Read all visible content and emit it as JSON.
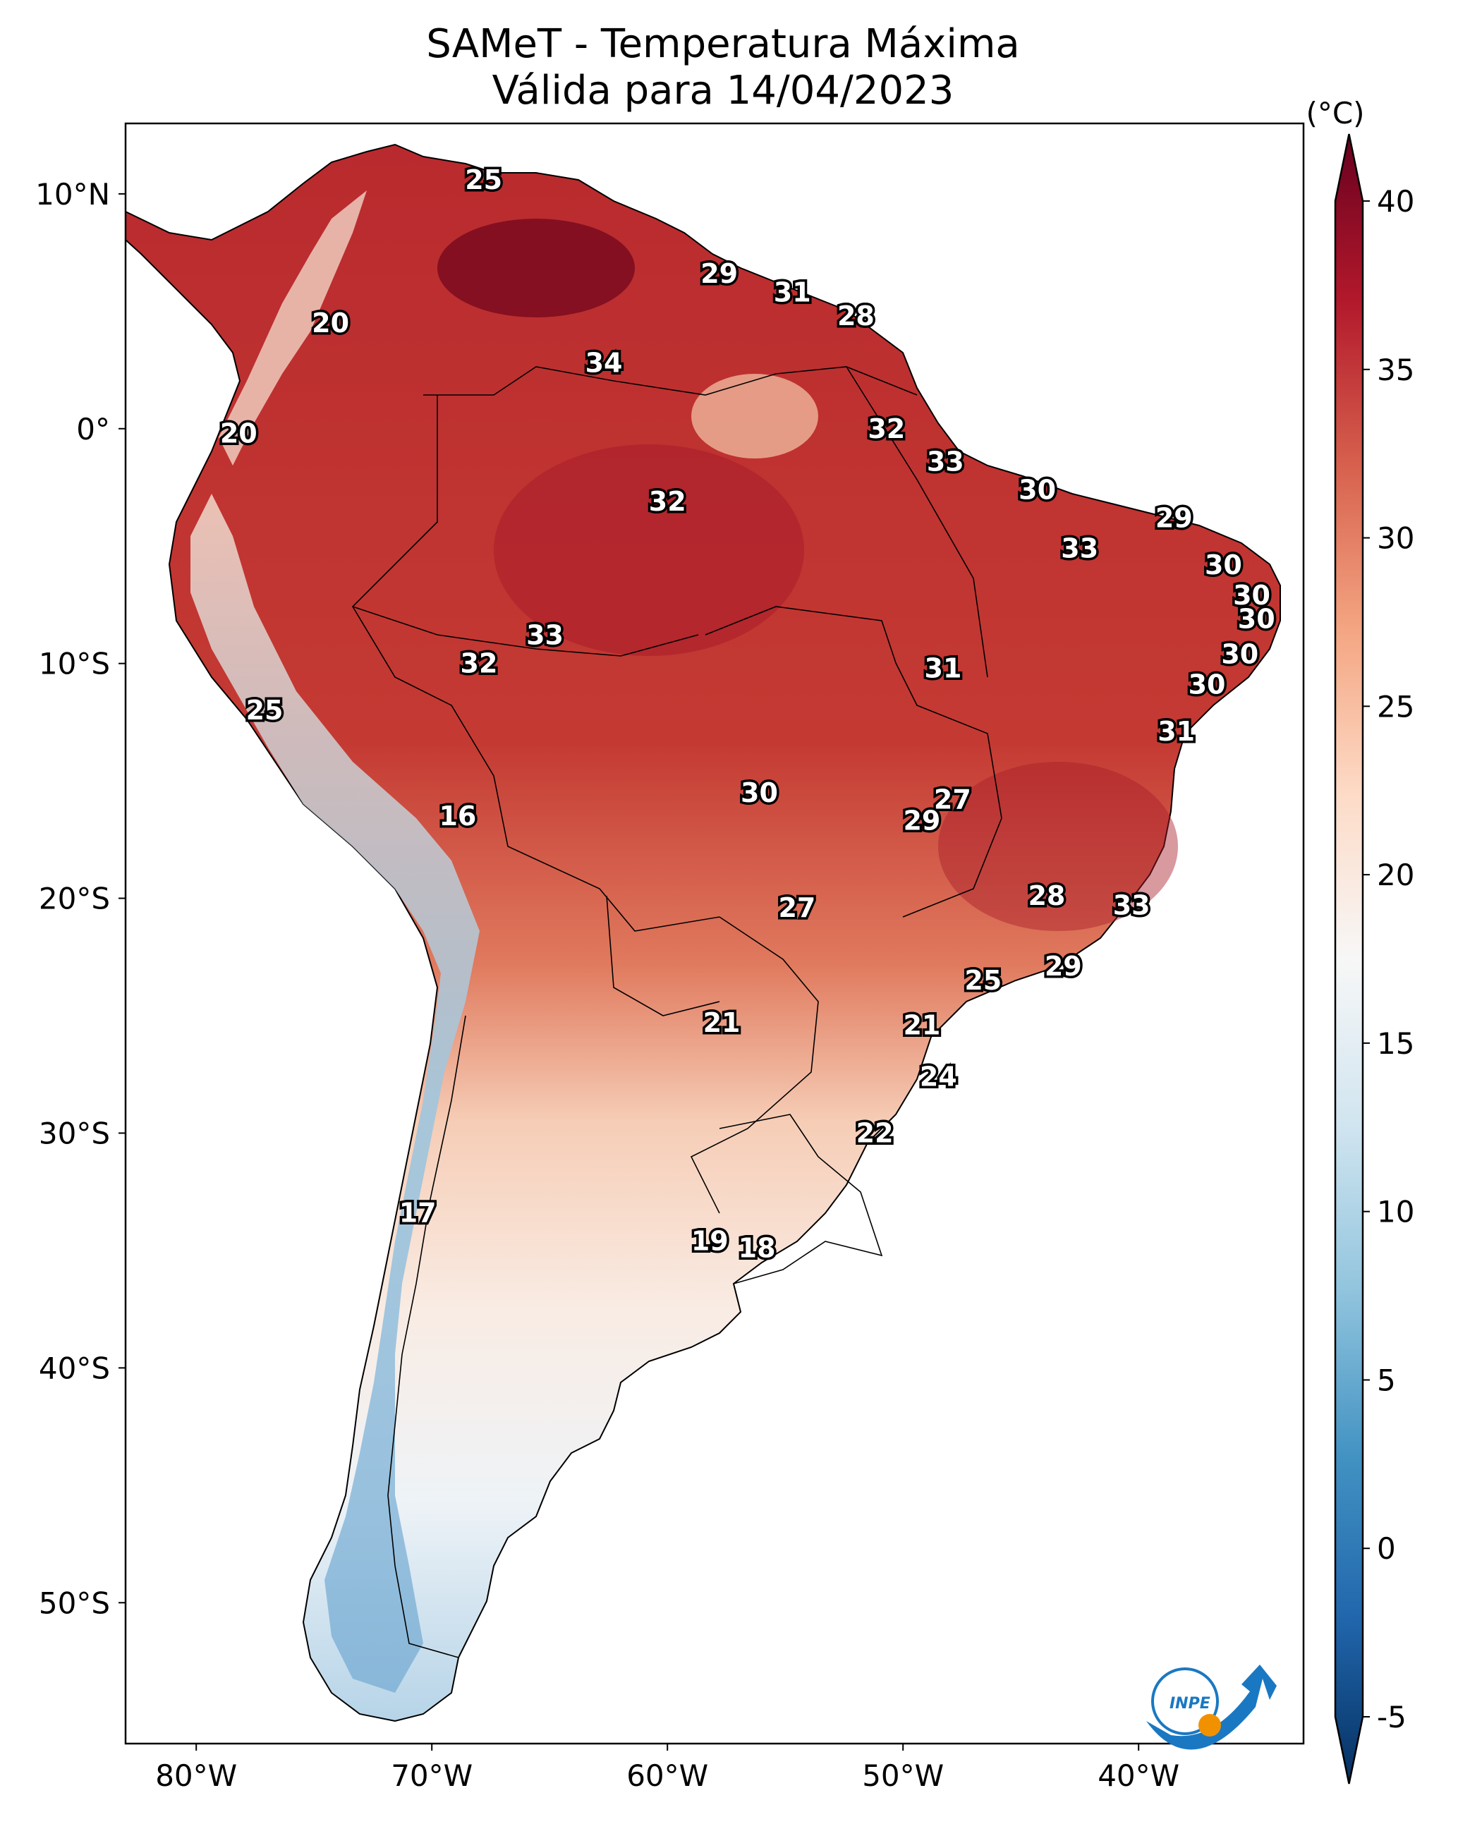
{
  "title": {
    "line1": "SAMeT - Temperatura Máxima",
    "line2": "Válida para 14/04/2023"
  },
  "map": {
    "lon_range": [
      -83,
      -33
    ],
    "lat_range": [
      -56,
      13
    ],
    "lat_ticks": [
      {
        "value": 10,
        "label": "10°N"
      },
      {
        "value": 0,
        "label": "0°"
      },
      {
        "value": -10,
        "label": "10°S"
      },
      {
        "value": -20,
        "label": "20°S"
      },
      {
        "value": -30,
        "label": "30°S"
      },
      {
        "value": -40,
        "label": "40°S"
      },
      {
        "value": -50,
        "label": "50°S"
      }
    ],
    "lon_ticks": [
      {
        "value": -80,
        "label": "80°W"
      },
      {
        "value": -70,
        "label": "70°W"
      },
      {
        "value": -60,
        "label": "60°W"
      },
      {
        "value": -50,
        "label": "50°W"
      },
      {
        "value": -40,
        "label": "40°W"
      }
    ],
    "point_values": [
      {
        "lon": -67.8,
        "lat": 10.6,
        "text": "25"
      },
      {
        "lon": -74.3,
        "lat": 4.5,
        "text": "20"
      },
      {
        "lon": -57.8,
        "lat": 6.6,
        "text": "29"
      },
      {
        "lon": -54.7,
        "lat": 5.8,
        "text": "31"
      },
      {
        "lon": -52.0,
        "lat": 4.8,
        "text": "28"
      },
      {
        "lon": -62.7,
        "lat": 2.8,
        "text": "34"
      },
      {
        "lon": -78.2,
        "lat": -0.2,
        "text": "20"
      },
      {
        "lon": -50.7,
        "lat": 0.0,
        "text": "32"
      },
      {
        "lon": -48.2,
        "lat": -1.4,
        "text": "33"
      },
      {
        "lon": -60.0,
        "lat": -3.1,
        "text": "32"
      },
      {
        "lon": -44.3,
        "lat": -2.6,
        "text": "30"
      },
      {
        "lon": -38.5,
        "lat": -3.8,
        "text": "29"
      },
      {
        "lon": -42.5,
        "lat": -5.1,
        "text": "33"
      },
      {
        "lon": -36.4,
        "lat": -5.8,
        "text": "30"
      },
      {
        "lon": -35.2,
        "lat": -7.1,
        "text": "30"
      },
      {
        "lon": -35.0,
        "lat": -8.1,
        "text": "30"
      },
      {
        "lon": -65.2,
        "lat": -8.8,
        "text": "33"
      },
      {
        "lon": -68.0,
        "lat": -10.0,
        "text": "32"
      },
      {
        "lon": -48.3,
        "lat": -10.2,
        "text": "31"
      },
      {
        "lon": -35.7,
        "lat": -9.6,
        "text": "30"
      },
      {
        "lon": -37.1,
        "lat": -10.9,
        "text": "30"
      },
      {
        "lon": -77.1,
        "lat": -12.0,
        "text": "25"
      },
      {
        "lon": -38.4,
        "lat": -12.9,
        "text": "31"
      },
      {
        "lon": -68.9,
        "lat": -16.5,
        "text": "16"
      },
      {
        "lon": -56.1,
        "lat": -15.5,
        "text": "30"
      },
      {
        "lon": -47.9,
        "lat": -15.8,
        "text": "27"
      },
      {
        "lon": -49.2,
        "lat": -16.7,
        "text": "29"
      },
      {
        "lon": -54.5,
        "lat": -20.4,
        "text": "27"
      },
      {
        "lon": -43.9,
        "lat": -19.9,
        "text": "28"
      },
      {
        "lon": -40.3,
        "lat": -20.3,
        "text": "33"
      },
      {
        "lon": -46.6,
        "lat": -23.5,
        "text": "25"
      },
      {
        "lon": -43.2,
        "lat": -22.9,
        "text": "29"
      },
      {
        "lon": -57.7,
        "lat": -25.3,
        "text": "21"
      },
      {
        "lon": -49.2,
        "lat": -25.4,
        "text": "21"
      },
      {
        "lon": -48.5,
        "lat": -27.6,
        "text": "24"
      },
      {
        "lon": -51.2,
        "lat": -30.0,
        "text": "22"
      },
      {
        "lon": -70.6,
        "lat": -33.4,
        "text": "17"
      },
      {
        "lon": -58.2,
        "lat": -34.6,
        "text": "19"
      },
      {
        "lon": -56.2,
        "lat": -34.9,
        "text": "18"
      }
    ]
  },
  "colorbar": {
    "units": "(°C)",
    "min": -5,
    "max": 40,
    "ticks": [
      {
        "value": 40,
        "label": "40"
      },
      {
        "value": 35,
        "label": "35"
      },
      {
        "value": 30,
        "label": "30"
      },
      {
        "value": 25,
        "label": "25"
      },
      {
        "value": 20,
        "label": "20"
      },
      {
        "value": 15,
        "label": "15"
      },
      {
        "value": 10,
        "label": "10"
      },
      {
        "value": 5,
        "label": "5"
      },
      {
        "value": 0,
        "label": "0"
      },
      {
        "value": -5,
        "label": "-5"
      }
    ],
    "colors": [
      "#053061",
      "#2166ac",
      "#4393c3",
      "#92c5de",
      "#d1e5f0",
      "#f7f7f7",
      "#fddbc7",
      "#f4a582",
      "#d6604d",
      "#b2182b",
      "#67001f"
    ]
  },
  "logo": {
    "text": "INPE",
    "colors": {
      "blue": "#1a78c2",
      "orange": "#f29100"
    }
  }
}
